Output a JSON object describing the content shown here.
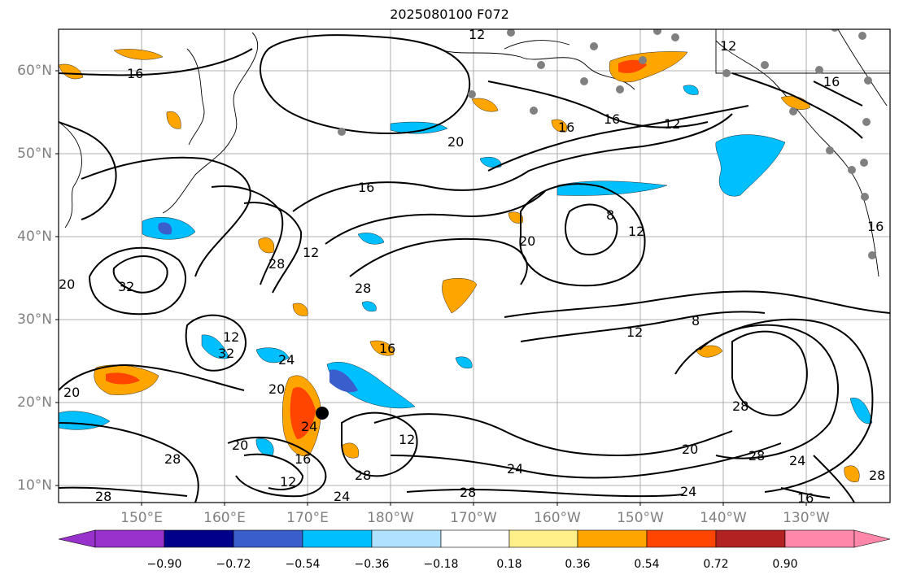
{
  "title": "2025080100 F072",
  "lat_labels": [
    "60°N",
    "50°N",
    "40°N",
    "30°N",
    "20°N",
    "10°N"
  ],
  "lon_labels": [
    "150°E",
    "160°E",
    "170°E",
    "180°W",
    "170°W",
    "160°W",
    "150°W",
    "140°W",
    "130°W"
  ],
  "contour_labels": [
    "12",
    "16",
    "12",
    "16",
    "16",
    "12",
    "20",
    "16",
    "16",
    "12",
    "20",
    "32",
    "28",
    "12",
    "28",
    "20",
    "8",
    "12",
    "8",
    "12",
    "28",
    "24",
    "32",
    "16",
    "20",
    "24",
    "20",
    "12",
    "24",
    "28",
    "20",
    "28",
    "12",
    "28",
    "24",
    "16",
    "24",
    "28",
    "20",
    "16",
    "28",
    "16",
    "28",
    "24"
  ],
  "colorbar": {
    "ticks": [
      "−0.90",
      "−0.72",
      "−0.54",
      "−0.36",
      "−0.18",
      "0.18",
      "0.36",
      "0.54",
      "0.72",
      "0.90"
    ],
    "colors": [
      "#9932cc",
      "#00008b",
      "#3a5fcd",
      "#00bfff",
      "#b0e2ff",
      "#ffffff",
      "#fff08a",
      "#ffa500",
      "#ff4500",
      "#b22222",
      "#ff88aa"
    ]
  },
  "colors": {
    "land_station": "#808080",
    "storm_center": "#000000",
    "contour": "#000000"
  }
}
